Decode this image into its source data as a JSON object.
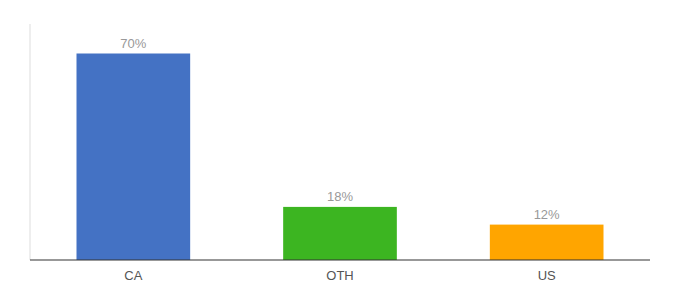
{
  "chart_data": {
    "type": "bar",
    "categories": [
      "CA",
      "OTH",
      "US"
    ],
    "values": [
      70,
      18,
      12
    ],
    "value_labels": [
      "70%",
      "18%",
      "12%"
    ],
    "colors": [
      "#4472C4",
      "#3CB521",
      "#FFA500"
    ],
    "ylim": [
      0,
      80
    ],
    "yticks": [],
    "data_labels": true,
    "tick_labels": "x"
  }
}
